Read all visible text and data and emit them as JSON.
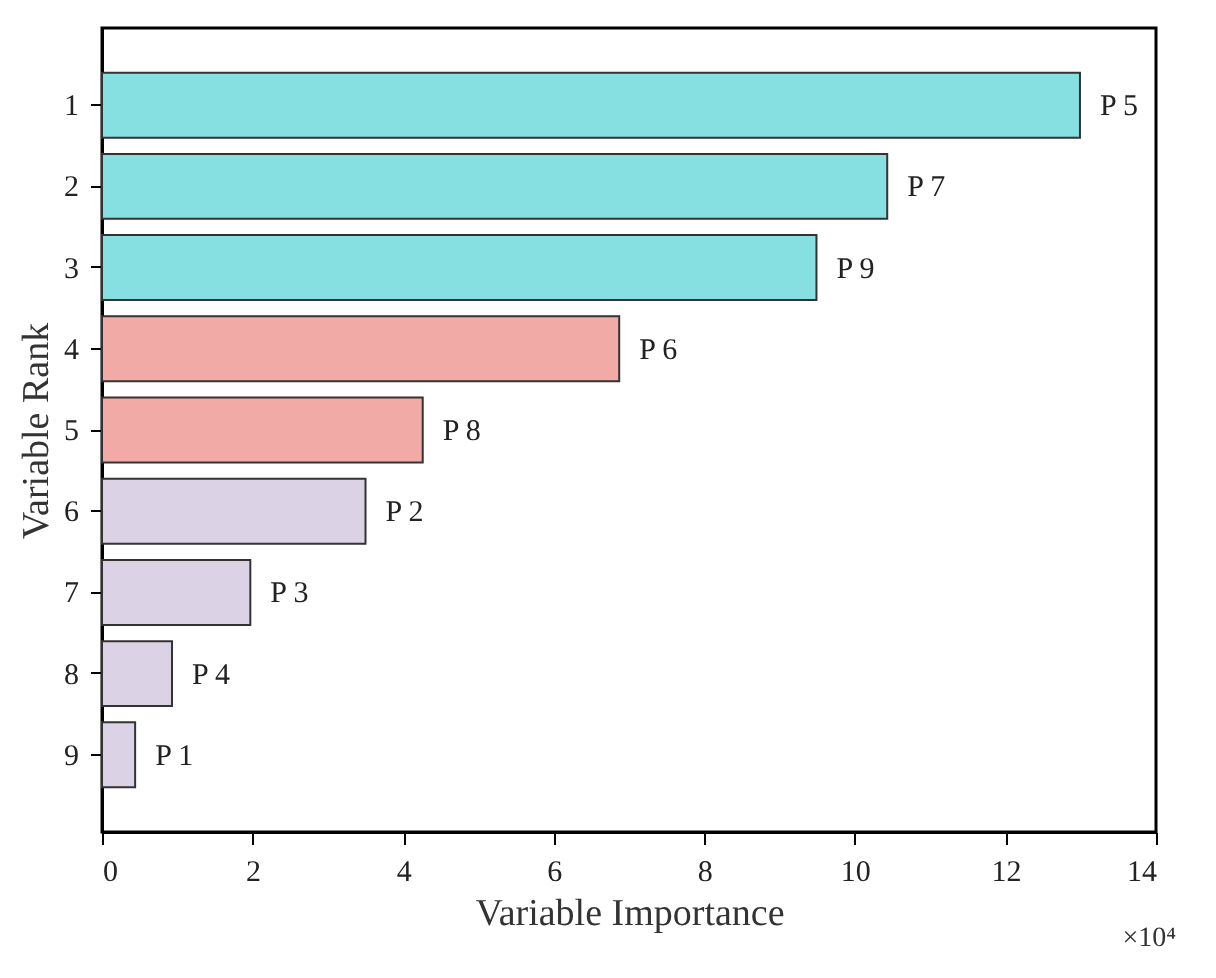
{
  "chart_data": {
    "type": "bar",
    "orientation": "horizontal",
    "categories": [
      "1",
      "2",
      "3",
      "4",
      "5",
      "6",
      "7",
      "8",
      "9"
    ],
    "values": [
      12.99,
      10.43,
      9.49,
      6.87,
      4.26,
      3.5,
      1.97,
      0.93,
      0.44
    ],
    "colors": [
      "#86dfe0",
      "#86dfe0",
      "#86dfe0",
      "#f2aaa6",
      "#f2aaa6",
      "#dcd2e6",
      "#dcd2e6",
      "#dcd2e6",
      "#dcd2e6"
    ],
    "xlim": [
      0,
      14
    ],
    "xticks": [
      0,
      2,
      4,
      6,
      8,
      10,
      12,
      14
    ],
    "xlabel": "Variable Importance",
    "ylabel": "Variable Rank",
    "grid": false,
    "annotations": [
      {
        "text": "P 5",
        "x": 12.99,
        "y": "1"
      },
      {
        "text": "P 7",
        "x": 10.43,
        "y": "2"
      },
      {
        "text": "P 9",
        "x": 9.49,
        "y": "3"
      },
      {
        "text": "P 6",
        "x": 6.87,
        "y": "4"
      },
      {
        "text": "P 8",
        "x": 4.26,
        "y": "5"
      },
      {
        "text": "P 2",
        "x": 3.5,
        "y": "6"
      },
      {
        "text": "P 3",
        "x": 1.97,
        "y": "7"
      },
      {
        "text": "P 4",
        "x": 0.93,
        "y": "8"
      },
      {
        "text": "P 1",
        "x": 0.44,
        "y": "9"
      },
      "×10⁴"
    ]
  }
}
